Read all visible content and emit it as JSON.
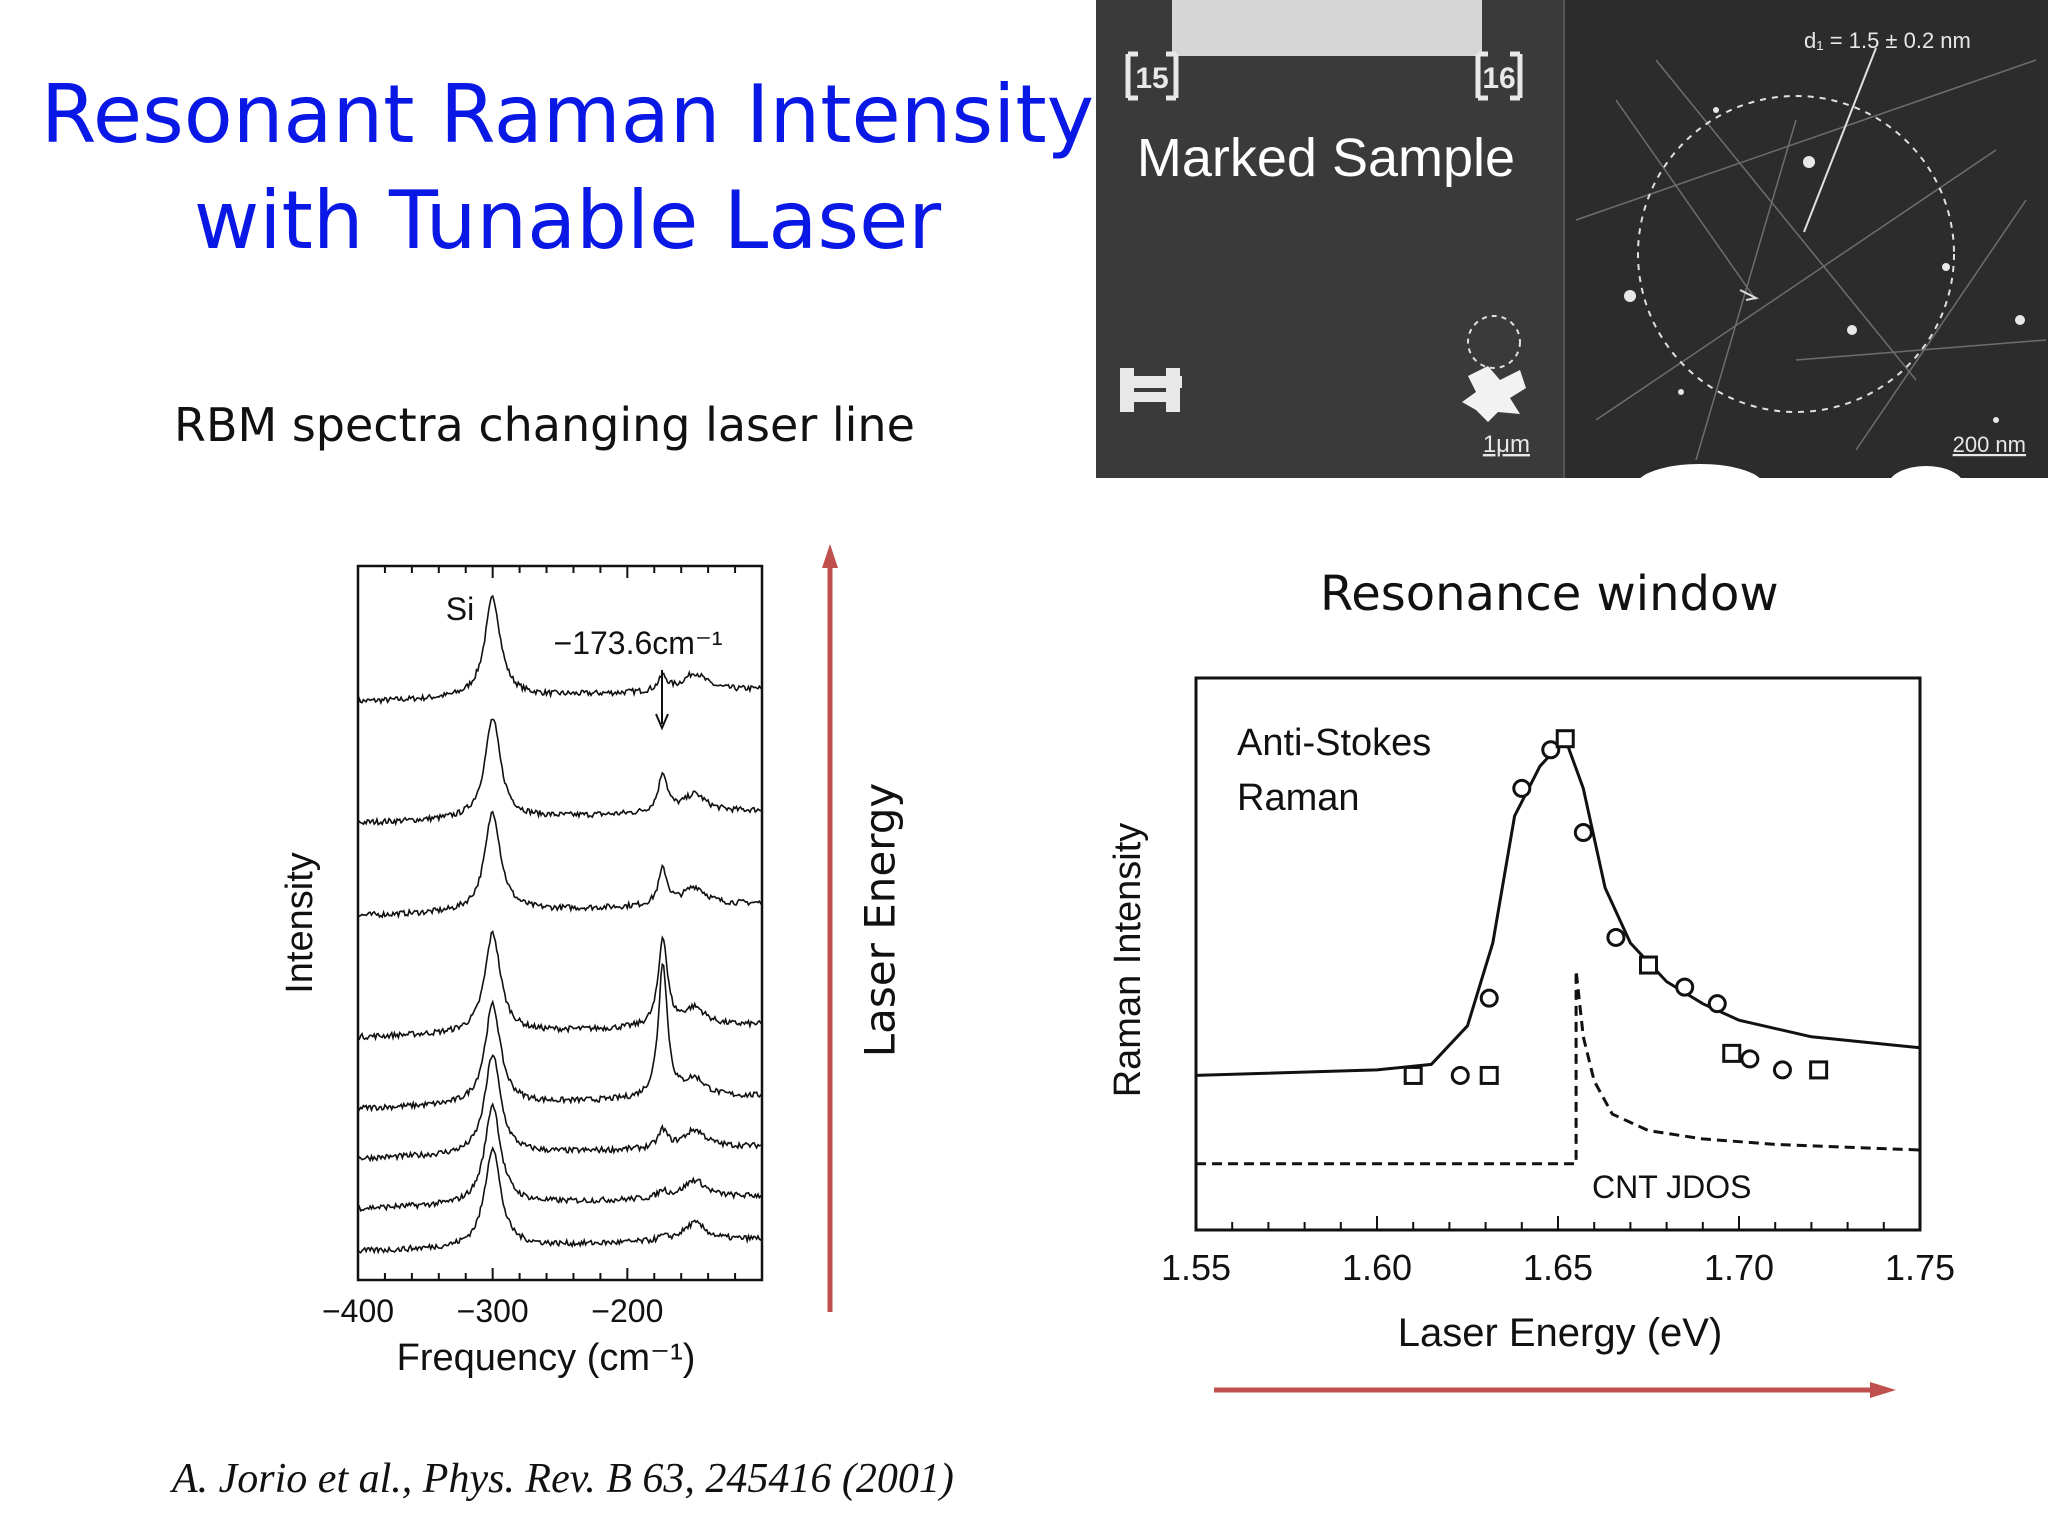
{
  "slide": {
    "title_line1": "Resonant Raman Intensity",
    "title_line2": "with Tunable Laser",
    "subtitle": "RBM spectra changing laser line",
    "citation": "A. Jorio et al., Phys. Rev. B 63, 245416 (2001)",
    "laser_energy_label": "Laser Energy",
    "resonance_window_title": "Resonance window",
    "accent_color": "#0a18e6",
    "arrow_color": "#c0504d"
  },
  "micrograph": {
    "caption": "Marked Sample",
    "marker_tl": "15",
    "marker_tr": "16",
    "scale_left": "1μm",
    "scale_right": "200 nm",
    "diameter_label": "d₁ = 1.5 ± 0.2 nm"
  },
  "chart_data": [
    {
      "type": "line",
      "title": "",
      "xlabel": "Frequency (cm⁻¹)",
      "ylabel": "Intensity",
      "xlim": [
        -400,
        -100
      ],
      "xticks": [
        -400,
        -300,
        -200
      ],
      "xtick_labels": [
        "−400",
        "−300",
        "−200"
      ],
      "annotations": [
        {
          "text": "Si",
          "x": -300
        },
        {
          "text": "−173.6cm⁻¹",
          "x": -173.6
        }
      ],
      "series": [
        {
          "offset": 0.81,
          "rbm_peak": 0.04
        },
        {
          "offset": 0.64,
          "rbm_peak": 0.11
        },
        {
          "offset": 0.51,
          "rbm_peak": 0.1
        },
        {
          "offset": 0.34,
          "rbm_peak": 0.25
        },
        {
          "offset": 0.24,
          "rbm_peak": 0.38
        },
        {
          "offset": 0.17,
          "rbm_peak": 0.05
        },
        {
          "offset": 0.1,
          "rbm_peak": 0.02
        },
        {
          "offset": 0.04,
          "rbm_peak": 0.01
        }
      ]
    },
    {
      "type": "scatter",
      "title": "",
      "xlabel": "Laser Energy (eV)",
      "ylabel": "Raman Intensity",
      "xlim": [
        1.55,
        1.75
      ],
      "xticks": [
        1.55,
        1.6,
        1.65,
        1.7,
        1.75
      ],
      "xtick_labels": [
        "1.55",
        "1.60",
        "1.65",
        "1.70",
        "1.75"
      ],
      "annotations": [
        {
          "text": "Anti-Stokes",
          "x": 1.561,
          "y": 0.88
        },
        {
          "text": "Raman",
          "x": 1.561,
          "y": 0.78
        },
        {
          "text": "CNT JDOS",
          "x": 1.659,
          "y": 0.08
        }
      ],
      "series": [
        {
          "marker": "circle",
          "points": [
            [
              1.623,
              0.28
            ],
            [
              1.631,
              0.42
            ],
            [
              1.64,
              0.8
            ],
            [
              1.648,
              0.87
            ],
            [
              1.657,
              0.72
            ],
            [
              1.666,
              0.53
            ],
            [
              1.685,
              0.44
            ],
            [
              1.694,
              0.41
            ],
            [
              1.703,
              0.31
            ],
            [
              1.712,
              0.29
            ]
          ]
        },
        {
          "marker": "square",
          "points": [
            [
              1.61,
              0.28
            ],
            [
              1.631,
              0.28
            ],
            [
              1.652,
              0.89
            ],
            [
              1.675,
              0.48
            ],
            [
              1.698,
              0.32
            ],
            [
              1.722,
              0.29
            ]
          ]
        },
        {
          "style": "solid",
          "points": [
            [
              1.55,
              0.28
            ],
            [
              1.6,
              0.29
            ],
            [
              1.615,
              0.3
            ],
            [
              1.625,
              0.37
            ],
            [
              1.632,
              0.52
            ],
            [
              1.638,
              0.75
            ],
            [
              1.645,
              0.84
            ],
            [
              1.652,
              0.89
            ],
            [
              1.657,
              0.8
            ],
            [
              1.663,
              0.62
            ],
            [
              1.67,
              0.52
            ],
            [
              1.68,
              0.45
            ],
            [
              1.69,
              0.41
            ],
            [
              1.7,
              0.38
            ],
            [
              1.72,
              0.35
            ],
            [
              1.75,
              0.33
            ]
          ]
        },
        {
          "style": "dashed",
          "points": [
            [
              1.55,
              0.12
            ],
            [
              1.655,
              0.12
            ],
            [
              1.655,
              0.47
            ],
            [
              1.657,
              0.35
            ],
            [
              1.66,
              0.27
            ],
            [
              1.665,
              0.21
            ],
            [
              1.675,
              0.18
            ],
            [
              1.69,
              0.165
            ],
            [
              1.71,
              0.155
            ],
            [
              1.75,
              0.145
            ]
          ]
        }
      ]
    }
  ]
}
